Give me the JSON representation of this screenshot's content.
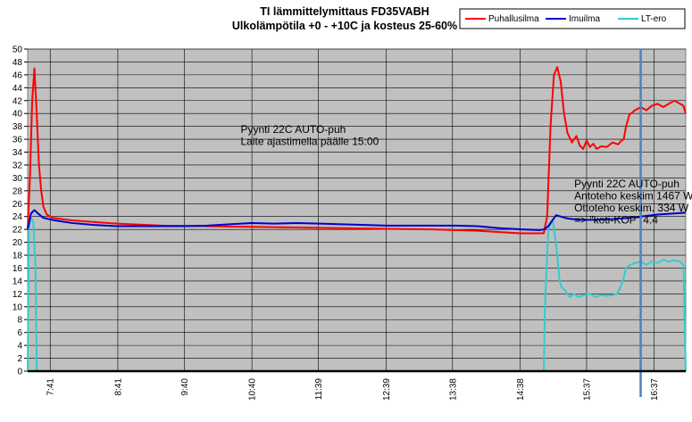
{
  "chart_data": {
    "type": "line",
    "title": "TI lämmittelymittaus  FD35VABH",
    "subtitle": "Ulkolämpötila +0 - +10C ja kosteus 25-60%",
    "xlabel": "",
    "ylabel": "",
    "ylim": [
      0,
      50
    ],
    "ytick_step": 2,
    "grid": true,
    "legend_position": "top-right",
    "plot_background": "#c0c0c0",
    "x_domain_minutes": [
      441,
      1025
    ],
    "x_ticks": [
      {
        "label": "7:41",
        "t": 461
      },
      {
        "label": "8:41",
        "t": 521
      },
      {
        "label": "9:40",
        "t": 580
      },
      {
        "label": "10:40",
        "t": 640
      },
      {
        "label": "11:39",
        "t": 699
      },
      {
        "label": "12:39",
        "t": 759
      },
      {
        "label": "13:38",
        "t": 818
      },
      {
        "label": "14:38",
        "t": 878
      },
      {
        "label": "15:37",
        "t": 937
      },
      {
        "label": "16:37",
        "t": 997
      }
    ],
    "marker_line": {
      "t": 985,
      "color": "#4f81bd"
    },
    "annotations": [
      {
        "lines": [
          "Pyynti 22C AUTO-puh",
          "Laite ajastimella päälle 15:00"
        ],
        "t": 630,
        "y": 37
      },
      {
        "lines": [
          "Pyynti 22C AUTO-puh",
          "Antoteho keskim 1467 W",
          "Ottoteho keskim. 334 W",
          "=> \"koti-KOP\" 4.4"
        ],
        "t": 926,
        "y": 28.5
      }
    ],
    "series": [
      {
        "name": "Puhallusilma",
        "color": "#ff0000",
        "points": [
          [
            441,
            22
          ],
          [
            443,
            30
          ],
          [
            445,
            42
          ],
          [
            447,
            47
          ],
          [
            449,
            40
          ],
          [
            451,
            32
          ],
          [
            453,
            28
          ],
          [
            455,
            25.5
          ],
          [
            458,
            24.3
          ],
          [
            463,
            23.8
          ],
          [
            480,
            23.4
          ],
          [
            520,
            22.9
          ],
          [
            560,
            22.6
          ],
          [
            600,
            22.5
          ],
          [
            640,
            22.4
          ],
          [
            680,
            22.3
          ],
          [
            720,
            22.2
          ],
          [
            760,
            22.1
          ],
          [
            800,
            22.0
          ],
          [
            840,
            21.8
          ],
          [
            878,
            21.4
          ],
          [
            899,
            21.4
          ],
          [
            902,
            24
          ],
          [
            905,
            38
          ],
          [
            908,
            46
          ],
          [
            911,
            47.2
          ],
          [
            914,
            45
          ],
          [
            917,
            40
          ],
          [
            920,
            37
          ],
          [
            924,
            35.5
          ],
          [
            928,
            36.5
          ],
          [
            931,
            35
          ],
          [
            934,
            34.5
          ],
          [
            937,
            35.8
          ],
          [
            940,
            34.8
          ],
          [
            943,
            35.3
          ],
          [
            946,
            34.5
          ],
          [
            950,
            34.9
          ],
          [
            955,
            34.8
          ],
          [
            960,
            35.5
          ],
          [
            965,
            35.2
          ],
          [
            968,
            35.8
          ],
          [
            970,
            36
          ],
          [
            972,
            38
          ],
          [
            975,
            39.8
          ],
          [
            980,
            40.5
          ],
          [
            985,
            41
          ],
          [
            990,
            40.5
          ],
          [
            995,
            41.2
          ],
          [
            1000,
            41.5
          ],
          [
            1005,
            41
          ],
          [
            1010,
            41.5
          ],
          [
            1015,
            42
          ],
          [
            1020,
            41.5
          ],
          [
            1023,
            41.2
          ],
          [
            1025,
            40
          ]
        ]
      },
      {
        "name": "Imuilma",
        "color": "#0000cc",
        "points": [
          [
            441,
            22
          ],
          [
            444,
            24.5
          ],
          [
            447,
            25
          ],
          [
            450,
            24.5
          ],
          [
            455,
            23.8
          ],
          [
            465,
            23.4
          ],
          [
            480,
            23
          ],
          [
            500,
            22.7
          ],
          [
            520,
            22.5
          ],
          [
            540,
            22.5
          ],
          [
            560,
            22.5
          ],
          [
            580,
            22.5
          ],
          [
            600,
            22.6
          ],
          [
            620,
            22.8
          ],
          [
            640,
            23
          ],
          [
            660,
            22.9
          ],
          [
            680,
            23
          ],
          [
            700,
            22.9
          ],
          [
            720,
            22.8
          ],
          [
            740,
            22.7
          ],
          [
            760,
            22.6
          ],
          [
            780,
            22.6
          ],
          [
            800,
            22.6
          ],
          [
            820,
            22.6
          ],
          [
            840,
            22.5
          ],
          [
            860,
            22.2
          ],
          [
            880,
            22
          ],
          [
            895,
            21.9
          ],
          [
            899,
            22
          ],
          [
            903,
            22.5
          ],
          [
            907,
            23.5
          ],
          [
            910,
            24.2
          ],
          [
            914,
            24
          ],
          [
            920,
            23.7
          ],
          [
            930,
            23.5
          ],
          [
            945,
            23.5
          ],
          [
            960,
            23.6
          ],
          [
            975,
            23.8
          ],
          [
            985,
            24
          ],
          [
            1000,
            24.3
          ],
          [
            1025,
            24.6
          ]
        ]
      },
      {
        "name": "LT-ero",
        "color": "#33cccc",
        "points": [
          [
            441,
            0
          ],
          [
            442,
            22
          ],
          [
            444,
            24
          ],
          [
            446,
            23
          ],
          [
            448,
            16
          ],
          [
            449,
            0
          ],
          [
            450,
            0
          ],
          [
            899,
            0
          ],
          [
            900,
            10
          ],
          [
            903,
            22
          ],
          [
            907,
            23.5
          ],
          [
            909,
            21
          ],
          [
            911,
            18
          ],
          [
            913,
            14
          ],
          [
            915,
            13
          ],
          [
            918,
            12.5
          ],
          [
            922,
            11.5
          ],
          [
            926,
            12
          ],
          [
            930,
            11.5
          ],
          [
            934,
            11.8
          ],
          [
            940,
            12
          ],
          [
            945,
            11.5
          ],
          [
            950,
            11.8
          ],
          [
            955,
            11.7
          ],
          [
            960,
            11.8
          ],
          [
            964,
            12
          ],
          [
            967,
            13
          ],
          [
            970,
            14.5
          ],
          [
            972,
            16
          ],
          [
            976,
            16.5
          ],
          [
            980,
            16.8
          ],
          [
            985,
            17
          ],
          [
            990,
            16.5
          ],
          [
            995,
            17
          ],
          [
            1000,
            16.8
          ],
          [
            1005,
            17.3
          ],
          [
            1010,
            17
          ],
          [
            1015,
            17.2
          ],
          [
            1020,
            17
          ],
          [
            1023,
            16.5
          ],
          [
            1025,
            0
          ]
        ]
      }
    ]
  }
}
